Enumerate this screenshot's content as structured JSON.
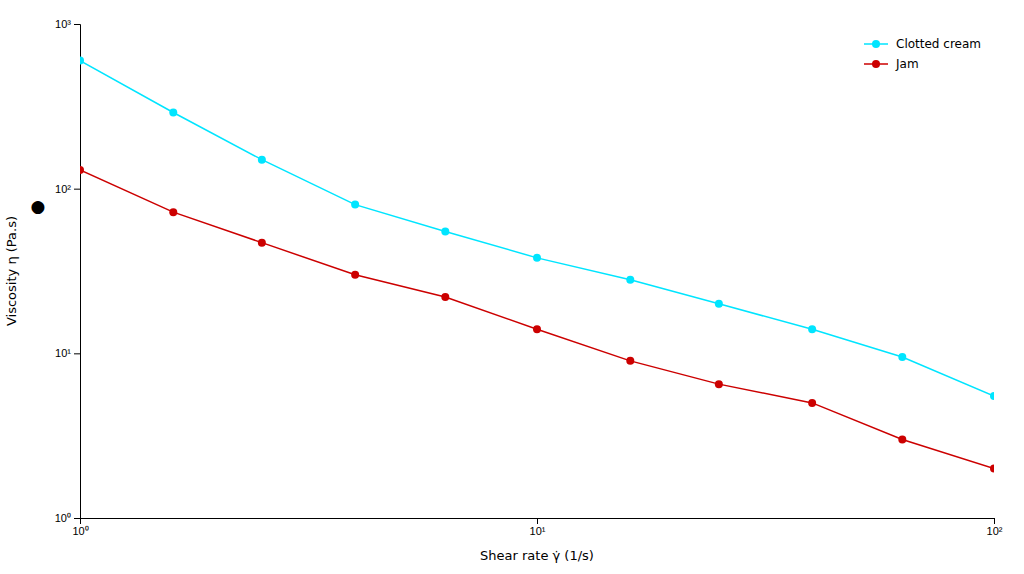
{
  "chart_data": {
    "type": "line",
    "x": [
      1.0,
      1.6,
      2.5,
      4.0,
      6.3,
      10.0,
      16.0,
      25.0,
      40.0,
      63.0,
      100.0
    ],
    "series": [
      {
        "name": "Clotted cream",
        "color": "#00E5FF",
        "marker": "circle",
        "line_style": "solid",
        "values": [
          600,
          290,
          150,
          80,
          55,
          38,
          28,
          20,
          14,
          9.5,
          5.5
        ]
      },
      {
        "name": "Jam",
        "color": "#CC0000",
        "marker": "circle",
        "line_style": "solid",
        "values": [
          130,
          72,
          47,
          30,
          22,
          14,
          9.0,
          6.5,
          5.0,
          3.0,
          2.0
        ]
      }
    ],
    "xlabel": "Shear rate  γ̇ (1/s)",
    "ylabel": "Viscosity η (Pa.s)",
    "xlim": [
      1.0,
      100.0
    ],
    "ylim": [
      1.0,
      1000.0
    ],
    "xticks": [
      {
        "value": 1,
        "label": "10⁰"
      },
      {
        "value": 10,
        "label": "10¹"
      },
      {
        "value": 100,
        "label": "10²"
      }
    ],
    "yticks": [
      {
        "value": 1,
        "label": "10⁰"
      },
      {
        "value": 10,
        "label": "10¹"
      },
      {
        "value": 100,
        "label": "10²"
      },
      {
        "value": 1000,
        "label": "10³"
      }
    ],
    "log": true,
    "grid": false,
    "legend": "upper right",
    "annotations": [
      {
        "text": "●",
        "y": 79
      }
    ]
  }
}
